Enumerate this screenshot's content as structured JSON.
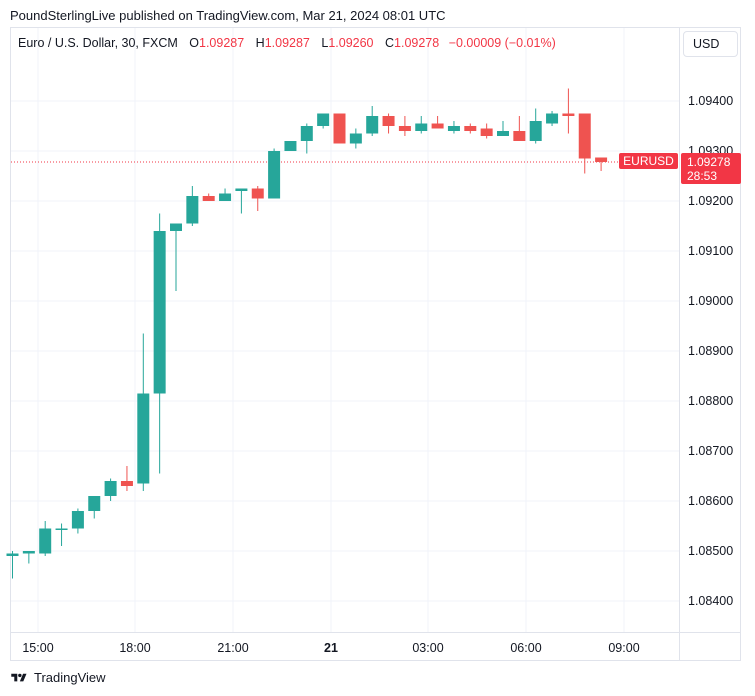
{
  "header": {
    "publisher_line": "PoundSterlingLive published on TradingView.com, Mar 21, 2024 08:01 UTC"
  },
  "legend": {
    "symbol": "Euro / U.S. Dollar, 30, FXCM",
    "open_label": "O",
    "open": "1.09287",
    "high_label": "H",
    "high": "1.09287",
    "low_label": "L",
    "low": "1.09260",
    "close_label": "C",
    "close": "1.09278",
    "change": "−0.00009 (−0.01%)"
  },
  "currency_button": {
    "label": "USD"
  },
  "last_price": {
    "symbol": "EURUSD",
    "price": "1.09278",
    "countdown": "28:53"
  },
  "footer": {
    "brand": "TradingView"
  },
  "colors": {
    "up": "#26a69a",
    "down": "#ef5350",
    "grid": "#f0f3fa",
    "price_line": "#f23645"
  },
  "chart_data": {
    "type": "candlestick",
    "interval": "30",
    "ylim": [
      1.0834,
      1.0944
    ],
    "y_ticks": [
      "1.08400",
      "1.08500",
      "1.08600",
      "1.08700",
      "1.08800",
      "1.08900",
      "1.09000",
      "1.09100",
      "1.09200",
      "1.09300",
      "1.09400"
    ],
    "x_ticks": [
      "15:00",
      "18:00",
      "21:00",
      "21",
      "03:00",
      "06:00",
      "09:00"
    ],
    "grid": true,
    "last_price_line": 1.09278,
    "candles": [
      {
        "o": 1.0849,
        "h": 1.085,
        "l": 1.08445,
        "c": 1.08495
      },
      {
        "o": 1.08495,
        "h": 1.085,
        "l": 1.08475,
        "c": 1.085
      },
      {
        "o": 1.08495,
        "h": 1.0856,
        "l": 1.0849,
        "c": 1.08545
      },
      {
        "o": 1.08545,
        "h": 1.08555,
        "l": 1.0851,
        "c": 1.08545
      },
      {
        "o": 1.08545,
        "h": 1.08585,
        "l": 1.08535,
        "c": 1.0858
      },
      {
        "o": 1.0858,
        "h": 1.0861,
        "l": 1.08565,
        "c": 1.0861
      },
      {
        "o": 1.0861,
        "h": 1.08645,
        "l": 1.086,
        "c": 1.0864
      },
      {
        "o": 1.0864,
        "h": 1.0867,
        "l": 1.0862,
        "c": 1.0863
      },
      {
        "o": 1.08635,
        "h": 1.08935,
        "l": 1.0862,
        "c": 1.08815
      },
      {
        "o": 1.08815,
        "h": 1.09175,
        "l": 1.08655,
        "c": 1.0914
      },
      {
        "o": 1.0914,
        "h": 1.09155,
        "l": 1.0902,
        "c": 1.09155
      },
      {
        "o": 1.09155,
        "h": 1.0923,
        "l": 1.0915,
        "c": 1.0921
      },
      {
        "o": 1.0921,
        "h": 1.09215,
        "l": 1.092,
        "c": 1.092
      },
      {
        "o": 1.092,
        "h": 1.09225,
        "l": 1.092,
        "c": 1.09215
      },
      {
        "o": 1.0922,
        "h": 1.09225,
        "l": 1.09175,
        "c": 1.09225
      },
      {
        "o": 1.09225,
        "h": 1.0923,
        "l": 1.0918,
        "c": 1.09205
      },
      {
        "o": 1.09205,
        "h": 1.09305,
        "l": 1.09205,
        "c": 1.093
      },
      {
        "o": 1.093,
        "h": 1.0932,
        "l": 1.093,
        "c": 1.0932
      },
      {
        "o": 1.0932,
        "h": 1.09355,
        "l": 1.09295,
        "c": 1.0935
      },
      {
        "o": 1.0935,
        "h": 1.09375,
        "l": 1.09345,
        "c": 1.09375
      },
      {
        "o": 1.09375,
        "h": 1.09375,
        "l": 1.09315,
        "c": 1.09315
      },
      {
        "o": 1.09315,
        "h": 1.09345,
        "l": 1.09305,
        "c": 1.09335
      },
      {
        "o": 1.09335,
        "h": 1.0939,
        "l": 1.0933,
        "c": 1.0937
      },
      {
        "o": 1.0937,
        "h": 1.09375,
        "l": 1.09335,
        "c": 1.0935
      },
      {
        "o": 1.0935,
        "h": 1.0937,
        "l": 1.0933,
        "c": 1.0934
      },
      {
        "o": 1.0934,
        "h": 1.0937,
        "l": 1.09335,
        "c": 1.09355
      },
      {
        "o": 1.09355,
        "h": 1.0937,
        "l": 1.09345,
        "c": 1.09345
      },
      {
        "o": 1.0934,
        "h": 1.0936,
        "l": 1.09335,
        "c": 1.0935
      },
      {
        "o": 1.0935,
        "h": 1.09355,
        "l": 1.09335,
        "c": 1.0934
      },
      {
        "o": 1.09345,
        "h": 1.09355,
        "l": 1.09325,
        "c": 1.0933
      },
      {
        "o": 1.0933,
        "h": 1.0936,
        "l": 1.0933,
        "c": 1.0934
      },
      {
        "o": 1.0934,
        "h": 1.0937,
        "l": 1.0932,
        "c": 1.0932
      },
      {
        "o": 1.0932,
        "h": 1.09385,
        "l": 1.09315,
        "c": 1.0936
      },
      {
        "o": 1.09355,
        "h": 1.0938,
        "l": 1.0935,
        "c": 1.09375
      },
      {
        "o": 1.09375,
        "h": 1.09425,
        "l": 1.09335,
        "c": 1.0937
      },
      {
        "o": 1.09375,
        "h": 1.09375,
        "l": 1.09255,
        "c": 1.09285
      },
      {
        "o": 1.09287,
        "h": 1.09287,
        "l": 1.0926,
        "c": 1.09278
      }
    ]
  }
}
